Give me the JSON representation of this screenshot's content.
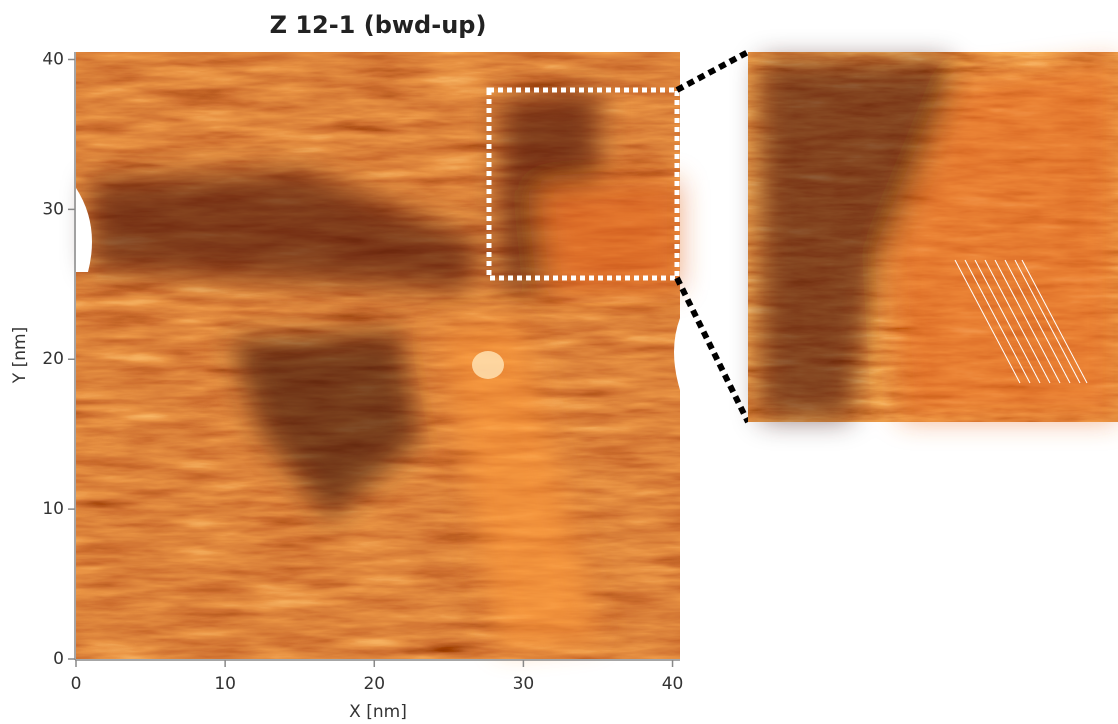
{
  "chart_data": {
    "type": "image",
    "title": "Z 12-1 (bwd-up)",
    "x_label": "X [nm]",
    "y_label": "Y [nm]",
    "xlim": [
      0,
      40.5
    ],
    "ylim": [
      0,
      40.5
    ],
    "xticks": [
      0,
      10,
      20,
      30,
      40
    ],
    "yticks": [
      0,
      10,
      20,
      30,
      40
    ]
  }
}
